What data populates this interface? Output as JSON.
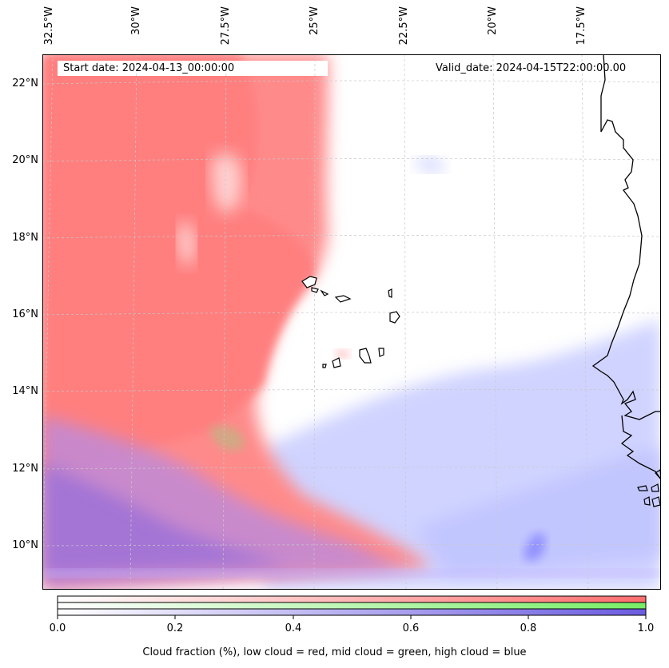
{
  "map": {
    "start_date_label": "Start date: 2024-04-13_00:00:00",
    "valid_date_label": "Valid_date: 2024-04-15T22:00:00.00",
    "lat_labels": [
      "22°N",
      "20°N",
      "18°N",
      "16°N",
      "14°N",
      "12°N",
      "10°N"
    ],
    "lon_labels": [
      "32.5°W",
      "30°W",
      "27.5°W",
      "25°W",
      "22.5°W",
      "20°W",
      "17.5°W"
    ],
    "colors": {
      "low_cloud": "#ff7f7f",
      "mid_cloud": "#80ee80",
      "high_cloud": "#7f7fff",
      "coastline": "#000000",
      "gridline": "#c8c8c8"
    }
  },
  "colorbar": {
    "ticks": [
      "0.0",
      "0.2",
      "0.4",
      "0.6",
      "0.8",
      "1.0"
    ],
    "label": "Cloud fraction (%), low cloud = red, mid cloud = green, high cloud = blue"
  }
}
